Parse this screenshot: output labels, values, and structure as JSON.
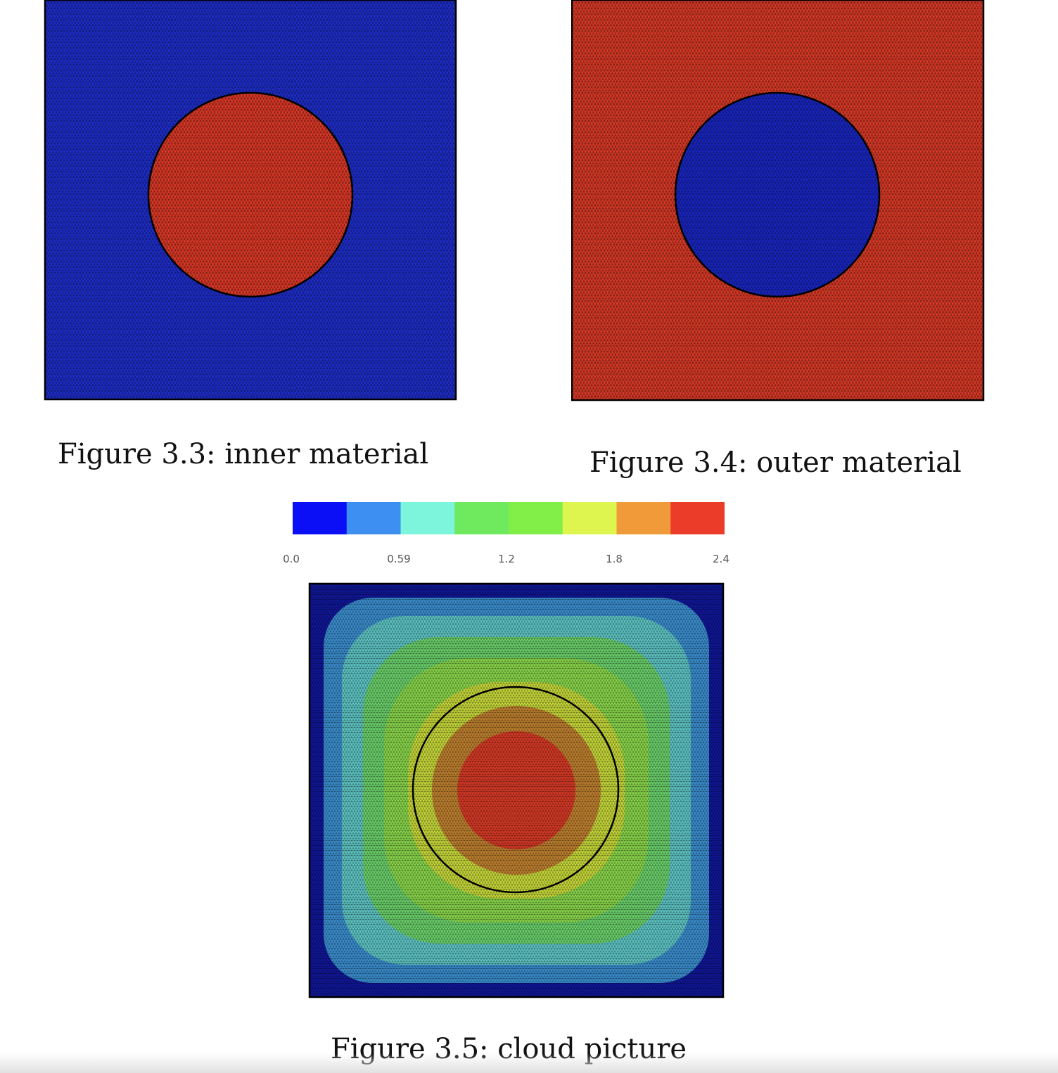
{
  "figures": [
    {
      "id": "fig-3-3",
      "caption": "Figure 3.3: inner material",
      "colors": {
        "background": "#1f2fd0",
        "circle": "#e23a28"
      }
    },
    {
      "id": "fig-3-4",
      "caption": "Figure 3.4: outer material",
      "colors": {
        "background": "#df3b28",
        "circle": "#1a27c8"
      }
    },
    {
      "id": "fig-3-5",
      "caption": "Figure 3.5: cloud picture",
      "colorbar": {
        "ticks": [
          "0.0",
          "0.59",
          "1.2",
          "1.8",
          "2.4"
        ],
        "colors": [
          "#0a0ff5",
          "#3d8ff2",
          "#7cf5dc",
          "#6fea5f",
          "#82ee48",
          "#dff54f",
          "#f09a3a",
          "#ea3c28"
        ]
      },
      "contour_colors": [
        "#10179a",
        "#3b8fd0",
        "#5fc6c6",
        "#6bd26b",
        "#8ad84b",
        "#c8da3a",
        "#c0812f",
        "#d83a26"
      ]
    }
  ]
}
